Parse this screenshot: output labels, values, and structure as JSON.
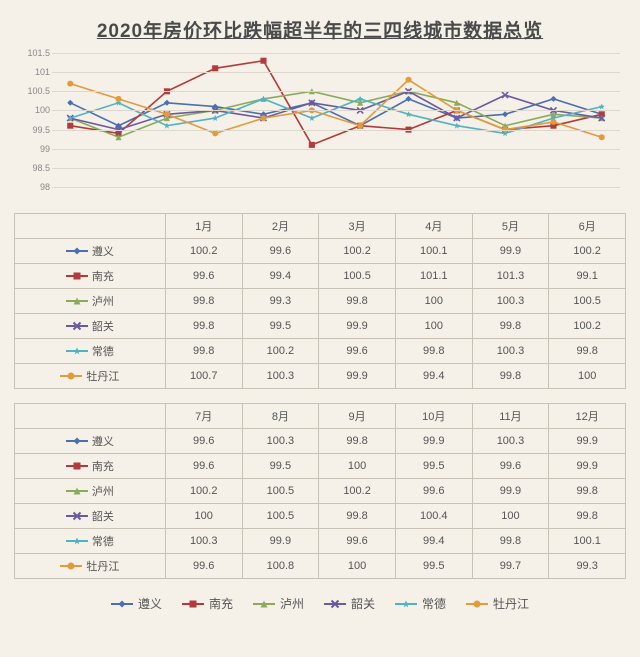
{
  "title": "2020年房价环比跌幅超半年的三四线城市数据总览",
  "chart": {
    "type": "line",
    "background": "#f5f0e8",
    "grid_color": "#ddd8ce",
    "title_fontsize": 19,
    "axis_fontsize": 9,
    "ylim": [
      98,
      101.5
    ],
    "yticks": [
      98,
      98.5,
      99,
      99.5,
      100,
      100.5,
      101,
      101.5
    ],
    "x_months": [
      "1月",
      "2月",
      "3月",
      "4月",
      "5月",
      "6月",
      "7月",
      "8月",
      "9月",
      "10月",
      "11月",
      "12月"
    ],
    "series": [
      {
        "name": "遵义",
        "color": "#4a6fb3",
        "marker": "diamond",
        "values": [
          100.2,
          99.6,
          100.2,
          100.1,
          99.9,
          100.2,
          99.6,
          100.3,
          99.8,
          99.9,
          100.3,
          99.9
        ]
      },
      {
        "name": "南充",
        "color": "#b23a3a",
        "marker": "square",
        "values": [
          99.6,
          99.4,
          100.5,
          101.1,
          101.3,
          99.1,
          99.6,
          99.5,
          100,
          99.5,
          99.6,
          99.9
        ]
      },
      {
        "name": "泸州",
        "color": "#8aab5a",
        "marker": "triangle",
        "values": [
          99.8,
          99.3,
          99.8,
          100,
          100.3,
          100.5,
          100.2,
          100.5,
          100.2,
          99.6,
          99.9,
          99.8
        ]
      },
      {
        "name": "韶关",
        "color": "#6b5aa0",
        "marker": "cross",
        "values": [
          99.8,
          99.5,
          99.9,
          100,
          99.8,
          100.2,
          100,
          100.5,
          99.8,
          100.4,
          100,
          99.8
        ]
      },
      {
        "name": "常德",
        "color": "#4fb3c4",
        "marker": "star",
        "values": [
          99.8,
          100.2,
          99.6,
          99.8,
          100.3,
          99.8,
          100.3,
          99.9,
          99.6,
          99.4,
          99.8,
          100.1
        ]
      },
      {
        "name": "牡丹江",
        "color": "#e39a3b",
        "marker": "circle",
        "values": [
          100.7,
          100.3,
          99.9,
          99.4,
          99.8,
          100,
          99.6,
          100.8,
          100,
          99.5,
          99.7,
          99.3
        ]
      }
    ]
  },
  "table1_cols": [
    "1月",
    "2月",
    "3月",
    "4月",
    "5月",
    "6月"
  ],
  "table2_cols": [
    "7月",
    "8月",
    "9月",
    "10月",
    "11月",
    "12月"
  ]
}
